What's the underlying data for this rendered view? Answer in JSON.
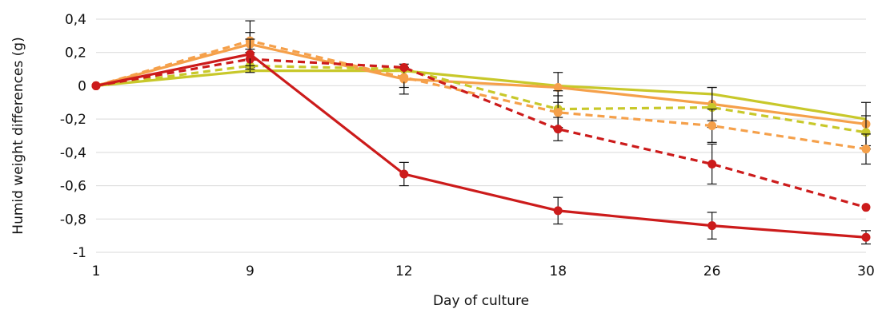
{
  "chart_data": {
    "type": "line",
    "title": "",
    "xlabel": "Day of culture",
    "ylabel": "Humid weight differences (g)",
    "categories": [
      "1",
      "9",
      "12",
      "18",
      "26",
      "30"
    ],
    "ylim": [
      -1,
      0.4
    ],
    "yticks": [
      0.4,
      0.2,
      0,
      -0.2,
      -0.4,
      -0.6,
      -0.8,
      -1
    ],
    "ytick_labels": [
      "0,4",
      "0,2",
      "0",
      "-0,2",
      "-0,4",
      "-0,6",
      "-0,8",
      "-1"
    ],
    "grid": "horizontal",
    "legend": "none",
    "series": [
      {
        "color": "#c8c82a",
        "style": "solid",
        "marker": "none",
        "values": [
          0,
          0.09,
          0.09,
          0.0,
          -0.05,
          -0.2
        ],
        "errors": [
          0,
          0.0,
          0.0,
          0.0,
          0.0,
          0.0
        ]
      },
      {
        "color": "#f5a04a",
        "style": "solid",
        "marker": "circle",
        "values": [
          0,
          0.25,
          0.04,
          -0.01,
          -0.11,
          -0.23
        ],
        "errors": [
          0,
          0.14,
          0.09,
          0.09,
          0.1,
          0.13
        ]
      },
      {
        "color": "#c8c82a",
        "style": "dashed",
        "marker": "circle",
        "values": [
          0,
          0.12,
          0.1,
          -0.14,
          -0.13,
          -0.28
        ],
        "errors": [
          0,
          0.04,
          0.0,
          0.11,
          0.12,
          0.1
        ]
      },
      {
        "color": "#f5a04a",
        "style": "dashed",
        "marker": "circle",
        "values": [
          0,
          0.27,
          0.05,
          -0.16,
          -0.24,
          -0.38
        ],
        "errors": [
          0,
          0.05,
          0.06,
          0.1,
          0.1,
          0.09
        ]
      },
      {
        "color": "#cc1b1b",
        "style": "dashed",
        "marker": "circle",
        "values": [
          0,
          0.16,
          0.11,
          -0.26,
          -0.47,
          -0.73
        ],
        "errors": [
          0,
          0.04,
          0.0,
          0.07,
          0.12,
          0.0
        ]
      },
      {
        "color": "#cc1b1b",
        "style": "solid",
        "marker": "circle",
        "values": [
          0,
          0.19,
          -0.53,
          -0.75,
          -0.84,
          -0.91
        ],
        "errors": [
          0,
          0.09,
          0.07,
          0.08,
          0.08,
          0.04
        ]
      }
    ]
  }
}
